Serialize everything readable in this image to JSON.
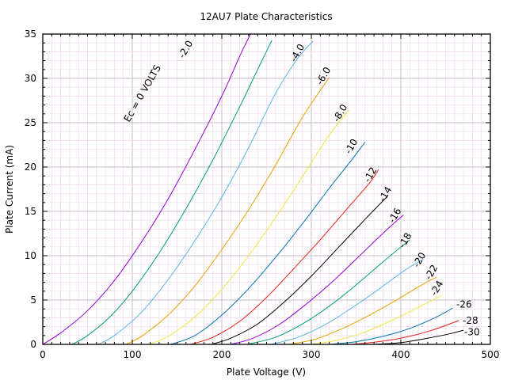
{
  "chart_data": {
    "type": "line",
    "title": "12AU7 Plate Characteristics",
    "xlabel": "Plate Voltage (V)",
    "ylabel": "Plate Current (mA)",
    "xlim": [
      0,
      500
    ],
    "ylim": [
      0,
      35
    ],
    "xticks": [
      "0",
      "100",
      "200",
      "300",
      "400",
      "500"
    ],
    "yticks": [
      "0",
      "5",
      "10",
      "15",
      "20",
      "25",
      "30",
      "35"
    ],
    "grid": "major and minor",
    "series": [
      {
        "name": "Ec = 0 VOLTS",
        "color": "#9400d3",
        "points": [
          [
            0,
            0
          ],
          [
            20,
            1.3
          ],
          [
            50,
            3.8
          ],
          [
            80,
            7.2
          ],
          [
            110,
            11.5
          ],
          [
            140,
            16.4
          ],
          [
            170,
            22
          ],
          [
            200,
            28
          ],
          [
            220,
            32.5
          ],
          [
            232,
            35
          ]
        ]
      },
      {
        "name": "-2.0",
        "color": "#009e73",
        "points": [
          [
            33,
            0
          ],
          [
            50,
            1
          ],
          [
            75,
            3.1
          ],
          [
            100,
            6
          ],
          [
            130,
            10.3
          ],
          [
            160,
            15.3
          ],
          [
            190,
            20.8
          ],
          [
            220,
            26.8
          ],
          [
            240,
            31
          ],
          [
            256,
            34.3
          ]
        ]
      },
      {
        "name": "-4.0",
        "color": "#56b4e9",
        "points": [
          [
            62,
            0
          ],
          [
            80,
            1
          ],
          [
            110,
            3.6
          ],
          [
            140,
            7.3
          ],
          [
            170,
            11.7
          ],
          [
            200,
            16.6
          ],
          [
            230,
            22.2
          ],
          [
            260,
            28.3
          ],
          [
            285,
            32.3
          ],
          [
            302,
            34.2
          ]
        ]
      },
      {
        "name": "-6.0",
        "color": "#e69f00",
        "points": [
          [
            93,
            0
          ],
          [
            110,
            0.9
          ],
          [
            140,
            3.3
          ],
          [
            170,
            6.6
          ],
          [
            200,
            10.7
          ],
          [
            230,
            15.2
          ],
          [
            260,
            20.2
          ],
          [
            290,
            25.6
          ],
          [
            320,
            30.1
          ]
        ]
      },
      {
        "name": "-8.0",
        "color": "#f0e442",
        "points": [
          [
            118,
            0
          ],
          [
            140,
            0.9
          ],
          [
            170,
            3.1
          ],
          [
            200,
            6.2
          ],
          [
            230,
            10
          ],
          [
            260,
            14.3
          ],
          [
            290,
            18.9
          ],
          [
            320,
            23.6
          ],
          [
            342,
            26.4
          ]
        ]
      },
      {
        "name": "-10",
        "color": "#0072b2",
        "points": [
          [
            143,
            0
          ],
          [
            170,
            1
          ],
          [
            200,
            3.3
          ],
          [
            230,
            6.3
          ],
          [
            260,
            9.8
          ],
          [
            290,
            13.6
          ],
          [
            320,
            17.6
          ],
          [
            345,
            20.8
          ],
          [
            360,
            22.8
          ]
        ]
      },
      {
        "name": "-12",
        "color": "#e51e10",
        "points": [
          [
            165,
            0
          ],
          [
            190,
            0.8
          ],
          [
            220,
            2.6
          ],
          [
            250,
            5.3
          ],
          [
            280,
            8.5
          ],
          [
            310,
            11.8
          ],
          [
            340,
            15.3
          ],
          [
            365,
            18.2
          ],
          [
            375,
            19.7
          ]
        ]
      },
      {
        "name": "-14",
        "color": "#000000",
        "points": [
          [
            188,
            0
          ],
          [
            210,
            0.7
          ],
          [
            240,
            2.3
          ],
          [
            270,
            4.8
          ],
          [
            300,
            7.7
          ],
          [
            330,
            10.9
          ],
          [
            360,
            14.1
          ],
          [
            385,
            16.7
          ]
        ]
      },
      {
        "name": "-16",
        "color": "#9400d3",
        "points": [
          [
            210,
            0
          ],
          [
            235,
            0.7
          ],
          [
            265,
            2.3
          ],
          [
            295,
            4.6
          ],
          [
            325,
            7.2
          ],
          [
            355,
            10.1
          ],
          [
            385,
            13
          ],
          [
            403,
            14.6
          ]
        ]
      },
      {
        "name": "-18",
        "color": "#009e73",
        "points": [
          [
            228,
            0
          ],
          [
            260,
            0.8
          ],
          [
            290,
            2.3
          ],
          [
            320,
            4.3
          ],
          [
            350,
            6.7
          ],
          [
            380,
            9.3
          ],
          [
            410,
            11.8
          ]
        ]
      },
      {
        "name": "-20",
        "color": "#56b4e9",
        "points": [
          [
            255,
            0
          ],
          [
            285,
            0.8
          ],
          [
            315,
            2.2
          ],
          [
            345,
            4.1
          ],
          [
            375,
            6.2
          ],
          [
            405,
            8.4
          ],
          [
            425,
            9.6
          ]
        ]
      },
      {
        "name": "-22",
        "color": "#e69f00",
        "points": [
          [
            275,
            0
          ],
          [
            305,
            0.6
          ],
          [
            335,
            1.8
          ],
          [
            365,
            3.3
          ],
          [
            395,
            5
          ],
          [
            425,
            6.8
          ],
          [
            440,
            7.6
          ]
        ]
      },
      {
        "name": "-24",
        "color": "#f0e442",
        "points": [
          [
            300,
            0
          ],
          [
            330,
            0.5
          ],
          [
            360,
            1.4
          ],
          [
            390,
            2.7
          ],
          [
            420,
            4.2
          ],
          [
            445,
            5.5
          ]
        ]
      },
      {
        "name": "-26",
        "color": "#0072b2",
        "points": [
          [
            320,
            0
          ],
          [
            350,
            0.3
          ],
          [
            380,
            0.9
          ],
          [
            410,
            1.8
          ],
          [
            440,
            3.1
          ],
          [
            458,
            4.1
          ]
        ]
      },
      {
        "name": "-28",
        "color": "#e51e10",
        "points": [
          [
            345,
            0
          ],
          [
            375,
            0.3
          ],
          [
            405,
            0.8
          ],
          [
            435,
            1.6
          ],
          [
            465,
            2.7
          ]
        ]
      },
      {
        "name": "-30",
        "color": "#000000",
        "points": [
          [
            370,
            0
          ],
          [
            400,
            0.2
          ],
          [
            430,
            0.7
          ],
          [
            455,
            1.2
          ],
          [
            470,
            1.6
          ]
        ]
      }
    ]
  }
}
